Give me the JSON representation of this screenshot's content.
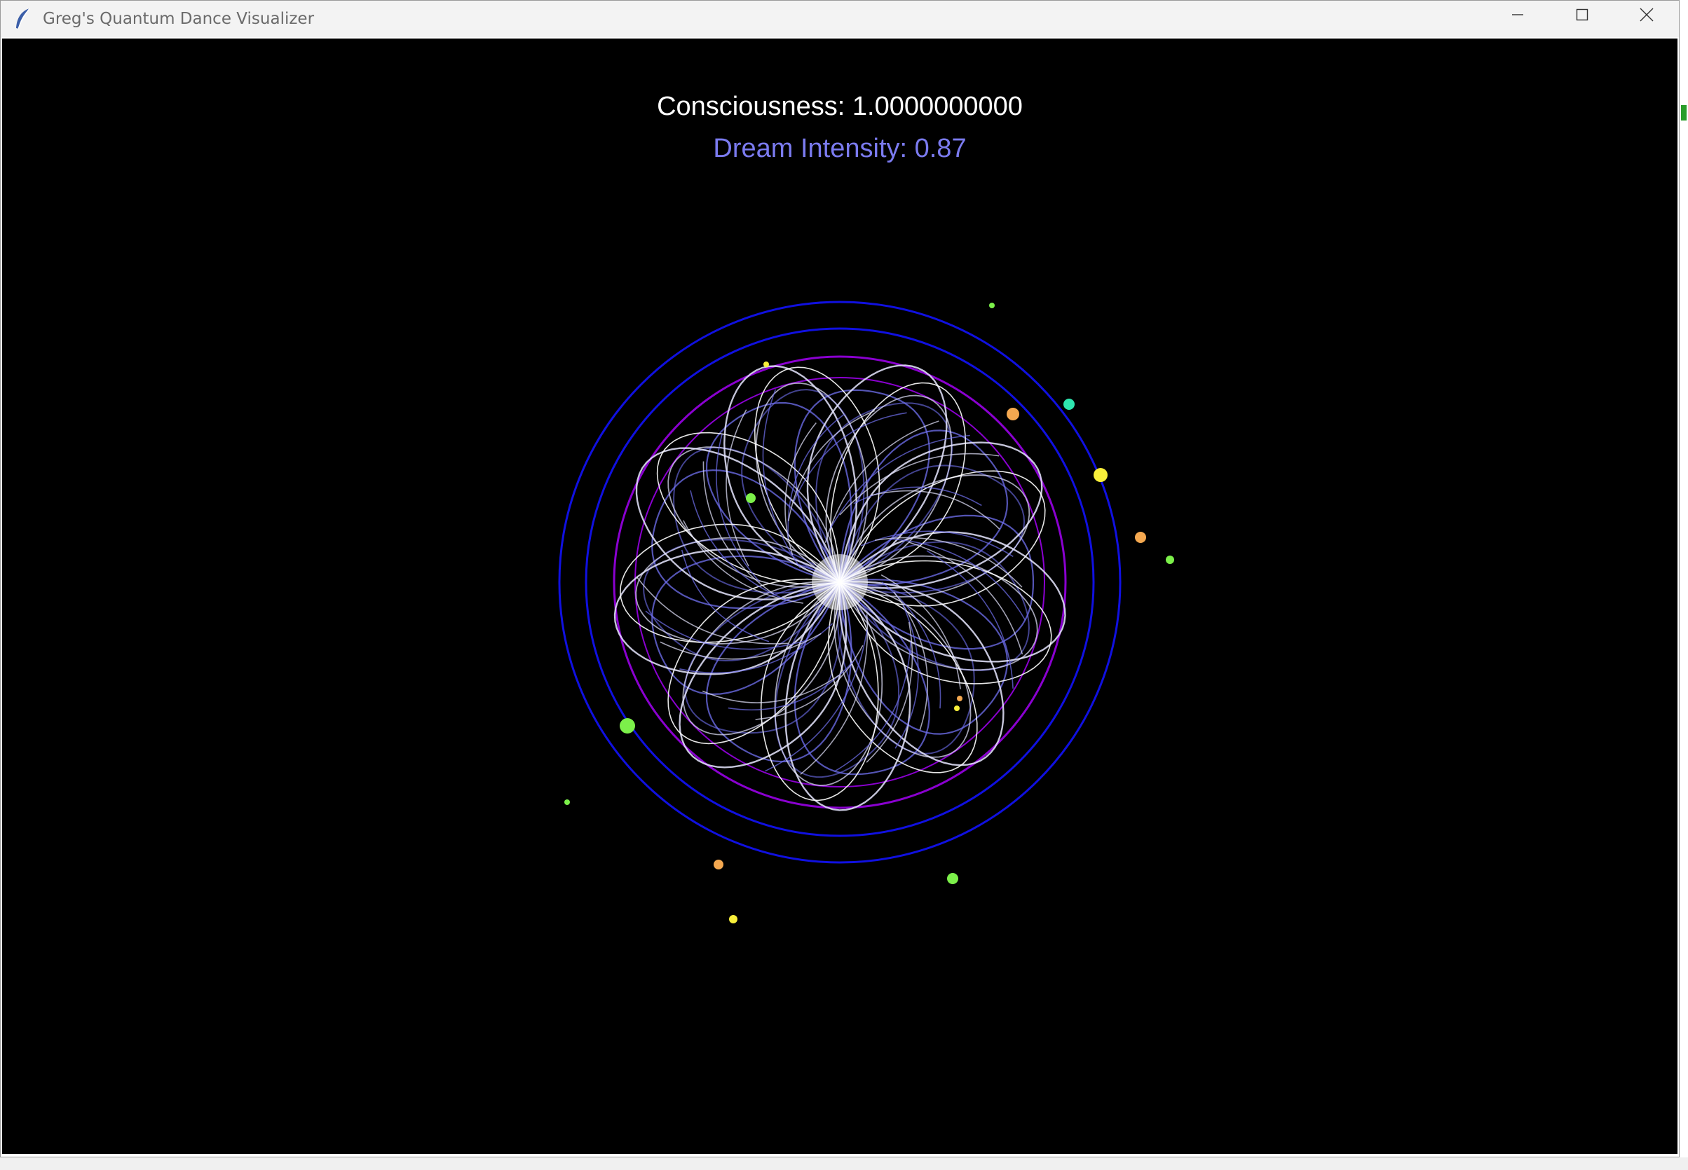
{
  "window": {
    "title": "Greg's Quantum Dance Visualizer",
    "icon": "feather-icon"
  },
  "controls": {
    "minimize_icon": "minimize-icon",
    "maximize_icon": "maximize-icon",
    "close_icon": "close-icon"
  },
  "hud": {
    "consciousness_text": "Consciousness: 1.0000000000",
    "dream_text": "Dream Intensity: 0.87"
  },
  "colors": {
    "canvas_bg": "#000000",
    "consciousness_text": "#ffffff",
    "dream_text": "#7b7bf0",
    "outer_rings": "#1010e0",
    "inner_rings": "#8a00d0",
    "petal_light": "#e6e6ff",
    "petal_mid": "#7070f0",
    "particle_green": "#7cf04a",
    "particle_yellow": "#f8ef3a",
    "particle_orange": "#f4a850",
    "particle_teal": "#2ee6b0"
  }
}
